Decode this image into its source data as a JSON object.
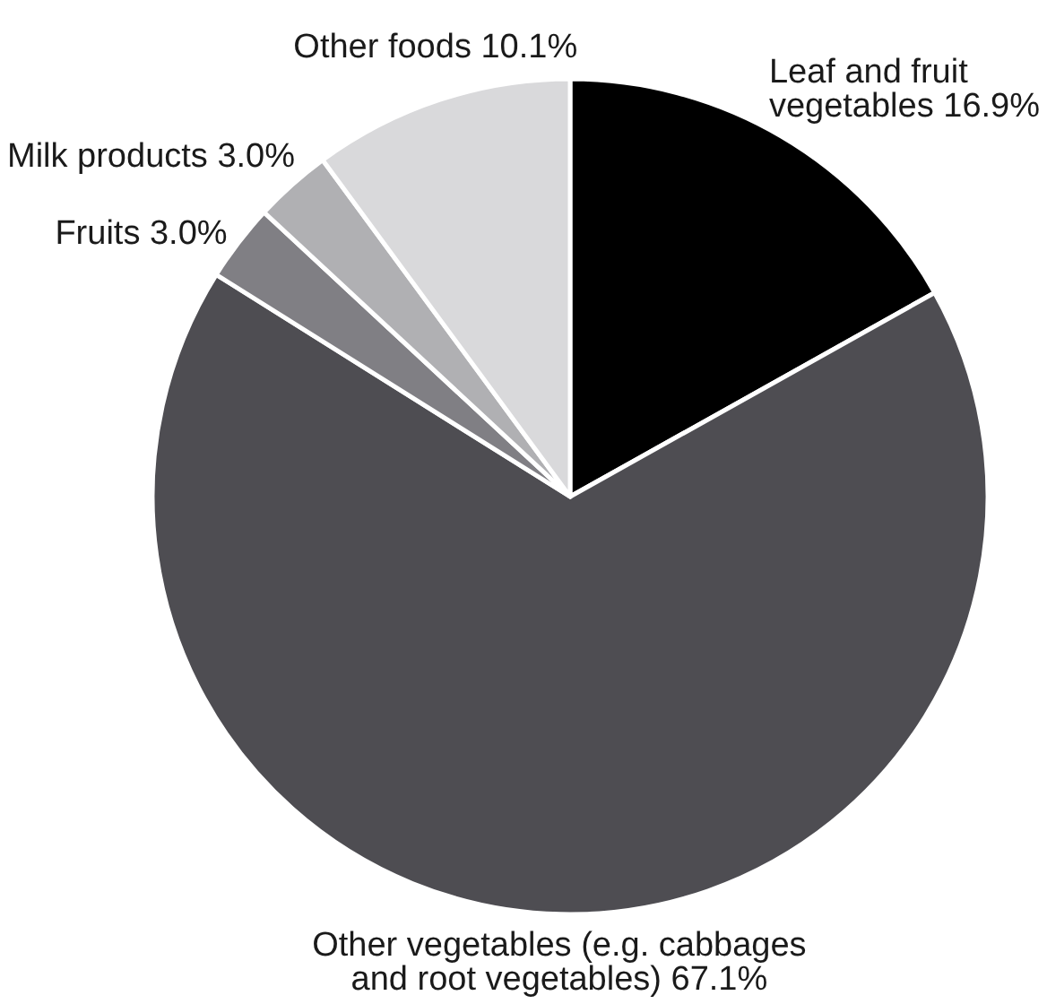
{
  "chart_data": {
    "type": "pie",
    "categories": [
      "Leaf and fruit vegetables",
      "Other vegetables (e.g. cabbages and root vegetables)",
      "Fruits",
      "Milk products",
      "Other foods"
    ],
    "values": [
      16.9,
      67.1,
      3.0,
      3.0,
      10.1
    ],
    "colors": [
      "#000000",
      "#4e4d52",
      "#807f84",
      "#b0b0b3",
      "#d9d9db"
    ],
    "value_labels": [
      "16.9%",
      "67.1%",
      "3.0%",
      "3.0%",
      "10.1%"
    ]
  }
}
